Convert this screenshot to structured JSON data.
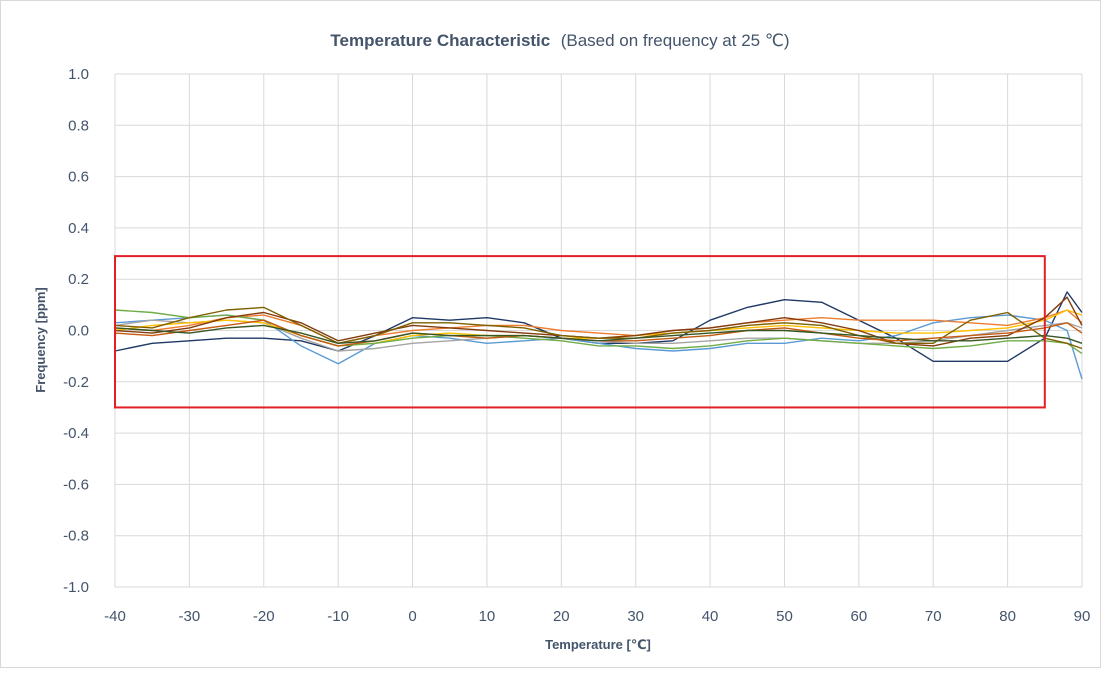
{
  "chart_data": {
    "type": "line",
    "title": "Temperature Characteristic",
    "subtitle": "(Based on frequency at 25 ℃)",
    "xlabel": "Temperature [℃]",
    "ylabel": "Frequency [ppm]",
    "xlim": [
      -40,
      90
    ],
    "ylim": [
      -1.0,
      1.0
    ],
    "x_ticks": [
      -40,
      -30,
      -20,
      -10,
      0,
      10,
      20,
      30,
      40,
      50,
      60,
      70,
      80,
      90
    ],
    "y_ticks": [
      1.0,
      0.8,
      0.6,
      0.4,
      0.2,
      0.0,
      -0.2,
      -0.4,
      -0.6,
      -0.8,
      -1.0
    ],
    "x_tick_labels": [
      "-40",
      "-30",
      "-20",
      "-10",
      "0",
      "10",
      "20",
      "30",
      "40",
      "50",
      "60",
      "70",
      "80",
      "90"
    ],
    "y_tick_labels": [
      "1.0",
      "0.8",
      "0.6",
      "0.4",
      "0.2",
      "0.0",
      "-0.2",
      "-0.4",
      "-0.6",
      "-0.8",
      "-1.0"
    ],
    "grid": true,
    "legend": "none",
    "highlight_box": {
      "x_range": [
        -40,
        85
      ],
      "y_range": [
        -0.3,
        0.29
      ],
      "color": "#e41e26"
    },
    "x": [
      -40,
      -35,
      -30,
      -25,
      -20,
      -15,
      -10,
      -5,
      0,
      5,
      10,
      15,
      20,
      25,
      30,
      35,
      40,
      45,
      50,
      55,
      60,
      65,
      70,
      75,
      80,
      85,
      88,
      90
    ],
    "series": [
      {
        "color": "#1f3864",
        "values": [
          -0.08,
          -0.05,
          -0.04,
          -0.03,
          -0.03,
          -0.04,
          -0.08,
          -0.02,
          0.05,
          0.04,
          0.05,
          0.03,
          -0.03,
          -0.05,
          -0.05,
          -0.04,
          0.04,
          0.09,
          0.12,
          0.11,
          0.04,
          -0.03,
          -0.12,
          -0.12,
          -0.12,
          -0.03,
          0.15,
          0.07
        ]
      },
      {
        "color": "#5b9bd5",
        "values": [
          0.03,
          0.04,
          0.05,
          0.06,
          0.04,
          -0.06,
          -0.13,
          -0.05,
          -0.02,
          -0.03,
          -0.05,
          -0.04,
          -0.03,
          -0.05,
          -0.07,
          -0.08,
          -0.07,
          -0.05,
          -0.05,
          -0.03,
          -0.04,
          -0.02,
          0.03,
          0.05,
          0.06,
          0.04,
          0.0,
          -0.19
        ]
      },
      {
        "color": "#ed7d31",
        "values": [
          0.01,
          0.0,
          0.02,
          0.05,
          0.06,
          0.02,
          -0.05,
          -0.02,
          0.0,
          0.01,
          0.02,
          0.02,
          0.0,
          -0.01,
          -0.02,
          0.0,
          0.01,
          0.03,
          0.04,
          0.05,
          0.04,
          0.04,
          0.04,
          0.03,
          0.02,
          0.05,
          0.08,
          0.03
        ]
      },
      {
        "color": "#a5a5a5",
        "values": [
          0.02,
          0.04,
          0.03,
          0.04,
          0.03,
          -0.03,
          -0.08,
          -0.07,
          -0.05,
          -0.04,
          -0.03,
          -0.02,
          -0.03,
          -0.04,
          -0.05,
          -0.05,
          -0.04,
          -0.03,
          -0.03,
          -0.04,
          -0.05,
          -0.05,
          -0.04,
          -0.02,
          0.0,
          0.02,
          0.03,
          0.01
        ]
      },
      {
        "color": "#ffc000",
        "values": [
          0.0,
          0.02,
          0.03,
          0.04,
          0.03,
          -0.02,
          -0.06,
          -0.05,
          -0.02,
          -0.01,
          -0.02,
          -0.02,
          -0.03,
          -0.03,
          -0.02,
          -0.01,
          0.0,
          0.01,
          0.02,
          0.01,
          0.0,
          -0.01,
          -0.01,
          0.0,
          0.01,
          0.04,
          0.08,
          0.06
        ]
      },
      {
        "color": "#70ad47",
        "values": [
          0.08,
          0.07,
          0.05,
          0.06,
          0.04,
          -0.02,
          -0.06,
          -0.05,
          -0.03,
          -0.02,
          -0.02,
          -0.03,
          -0.04,
          -0.06,
          -0.06,
          -0.07,
          -0.06,
          -0.04,
          -0.03,
          -0.04,
          -0.05,
          -0.06,
          -0.07,
          -0.06,
          -0.04,
          -0.04,
          -0.05,
          -0.09
        ]
      },
      {
        "color": "#843c0c",
        "values": [
          0.0,
          -0.01,
          0.01,
          0.05,
          0.07,
          0.03,
          -0.04,
          -0.01,
          0.02,
          0.01,
          0.0,
          -0.01,
          -0.02,
          -0.03,
          -0.02,
          0.0,
          0.01,
          0.03,
          0.05,
          0.03,
          0.0,
          -0.05,
          -0.06,
          -0.03,
          -0.02,
          0.05,
          0.13,
          0.02
        ]
      },
      {
        "color": "#7f6000",
        "values": [
          0.02,
          0.01,
          0.05,
          0.08,
          0.09,
          0.02,
          -0.05,
          -0.02,
          0.03,
          0.03,
          0.02,
          0.01,
          -0.02,
          -0.03,
          -0.03,
          -0.01,
          0.0,
          0.02,
          0.03,
          0.02,
          -0.02,
          -0.05,
          -0.05,
          0.04,
          0.07,
          -0.03,
          -0.05,
          -0.07
        ]
      },
      {
        "color": "#c55a11",
        "values": [
          -0.01,
          -0.02,
          0.0,
          0.02,
          0.04,
          -0.02,
          -0.06,
          -0.04,
          -0.01,
          -0.02,
          -0.03,
          -0.02,
          -0.03,
          -0.04,
          -0.04,
          -0.03,
          -0.02,
          0.0,
          0.01,
          -0.01,
          -0.03,
          -0.04,
          -0.03,
          -0.02,
          -0.01,
          0.01,
          0.03,
          -0.01
        ]
      },
      {
        "color": "#375623",
        "values": [
          0.01,
          0.0,
          -0.01,
          0.01,
          0.02,
          -0.01,
          -0.05,
          -0.04,
          -0.01,
          -0.02,
          -0.02,
          -0.02,
          -0.03,
          -0.04,
          -0.03,
          -0.02,
          -0.01,
          0.0,
          0.0,
          -0.01,
          -0.02,
          -0.03,
          -0.04,
          -0.04,
          -0.03,
          -0.02,
          -0.03,
          -0.05
        ]
      }
    ]
  }
}
